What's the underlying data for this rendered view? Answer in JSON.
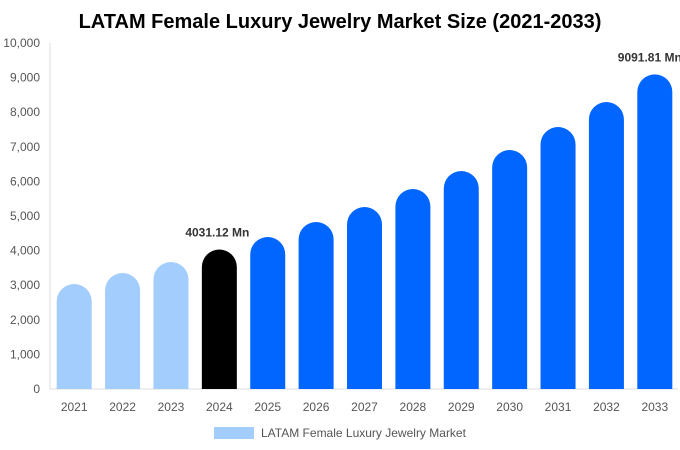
{
  "chart_data": {
    "type": "bar",
    "title": "LATAM Female Luxury Jewelry Market Size (2021-2033)",
    "categories": [
      "2021",
      "2022",
      "2023",
      "2024",
      "2025",
      "2026",
      "2027",
      "2028",
      "2029",
      "2030",
      "2031",
      "2032",
      "2033"
    ],
    "series": [
      {
        "name": "LATAM Female Luxury Jewelry Market",
        "values": [
          3035,
          3353,
          3671,
          4031.12,
          4393,
          4827,
          5260,
          5780,
          6300,
          6908,
          7572,
          8295,
          9091.81
        ]
      }
    ],
    "data_labels": [
      {
        "category": "2024",
        "text": "4031.12 Mn"
      },
      {
        "category": "2033",
        "text": "9091.81 Mn"
      }
    ],
    "ylim": [
      0,
      10000
    ],
    "yticks": [
      "0",
      "1,000",
      "2,000",
      "3,000",
      "4,000",
      "5,000",
      "6,000",
      "7,000",
      "8,000",
      "9,000",
      "10,000"
    ],
    "xlabel": "",
    "ylabel": "",
    "grid": false,
    "legend": "bottom",
    "colors": {
      "historical": "#a3cdfd",
      "base_year": "#000000",
      "forecast": "#0066ff"
    },
    "base_year_index": 3
  }
}
